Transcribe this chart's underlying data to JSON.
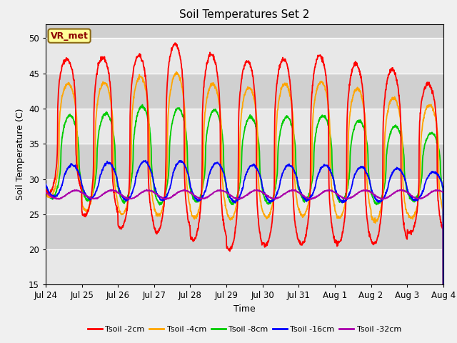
{
  "title": "Soil Temperatures Set 2",
  "xlabel": "Time",
  "ylabel": "Soil Temperature (C)",
  "ylim": [
    15,
    52
  ],
  "yticks": [
    15,
    20,
    25,
    30,
    35,
    40,
    45,
    50
  ],
  "xtick_labels": [
    "Jul 24",
    "Jul 25",
    "Jul 26",
    "Jul 27",
    "Jul 28",
    "Jul 29",
    "Jul 30",
    "Jul 31",
    "Aug 1",
    "Aug 2",
    "Aug 3",
    "Aug 4"
  ],
  "colors": {
    "Tsoil -2cm": "#FF0000",
    "Tsoil -4cm": "#FFA500",
    "Tsoil -8cm": "#00CC00",
    "Tsoil -16cm": "#0000FF",
    "Tsoil -32cm": "#AA00AA"
  },
  "bg_color": "#DCDCDC",
  "bg_band_light": "#E8E8E8",
  "bg_band_dark": "#D0D0D0",
  "annotation_text": "VR_met",
  "annotation_bg": "#FFFF99",
  "annotation_border": "#8B6914",
  "n_days": 11,
  "fig_bg": "#F0F0F0"
}
